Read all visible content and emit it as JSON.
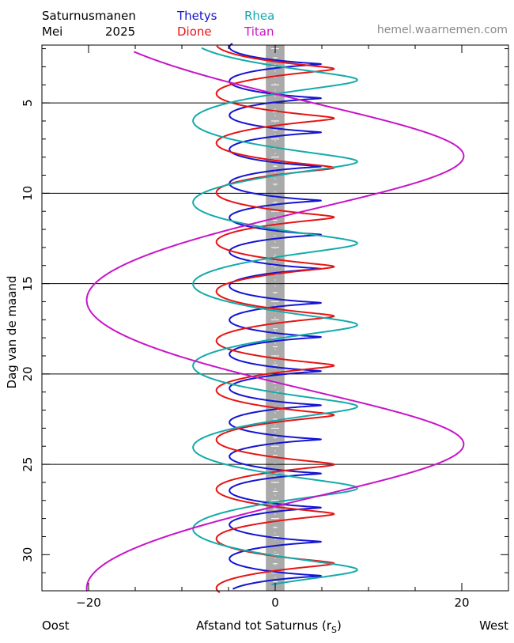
{
  "header": {
    "title": "Saturnusmanen",
    "month": "Mei",
    "year": "2025",
    "site": "hemel.waarnemen.com"
  },
  "legend": [
    {
      "name": "Thetys",
      "color": "#1414d2"
    },
    {
      "name": "Rhea",
      "color": "#14aaaa"
    },
    {
      "name": "Dione",
      "color": "#e61414"
    },
    {
      "name": "Titan",
      "color": "#c814c8"
    }
  ],
  "footer": {
    "left": "Oost",
    "center": "Afstand tot Saturnus (r",
    "sub": "S",
    "center_close": ")",
    "right": "West"
  },
  "chart_data": {
    "type": "line",
    "title": "Saturnusmanen",
    "xlabel": "Afstand tot Saturnus (rS)",
    "ylabel": "Dag van de maand",
    "xlim": [
      -25,
      25
    ],
    "ylim": [
      1.8,
      32
    ],
    "y_inverted": true,
    "x_ticks": [
      -20,
      0,
      20
    ],
    "y_ticks": [
      5,
      10,
      15,
      20,
      25,
      30
    ],
    "y_gridlines": [
      5,
      10,
      15,
      20,
      25
    ],
    "planet_band": {
      "x_from": -1,
      "x_to": 1,
      "color": "#aaaaaa"
    },
    "series": [
      {
        "name": "Thetys",
        "color": "#1414d2",
        "amplitude": 4.9,
        "period_days": 1.888,
        "phase_day": 2.38,
        "tilt": 0.25
      },
      {
        "name": "Dione",
        "color": "#e61414",
        "amplitude": 6.3,
        "period_days": 2.737,
        "phase_day": 2.43,
        "tilt": 0.28
      },
      {
        "name": "Rhea",
        "color": "#14aaaa",
        "amplitude": 8.8,
        "period_days": 4.518,
        "phase_day": 2.6,
        "tilt": 0.35
      },
      {
        "name": "Titan",
        "color": "#c814c8",
        "amplitude": 20.2,
        "period_days": 15.95,
        "phase_day": 3.95,
        "tilt": 0.55
      }
    ]
  }
}
